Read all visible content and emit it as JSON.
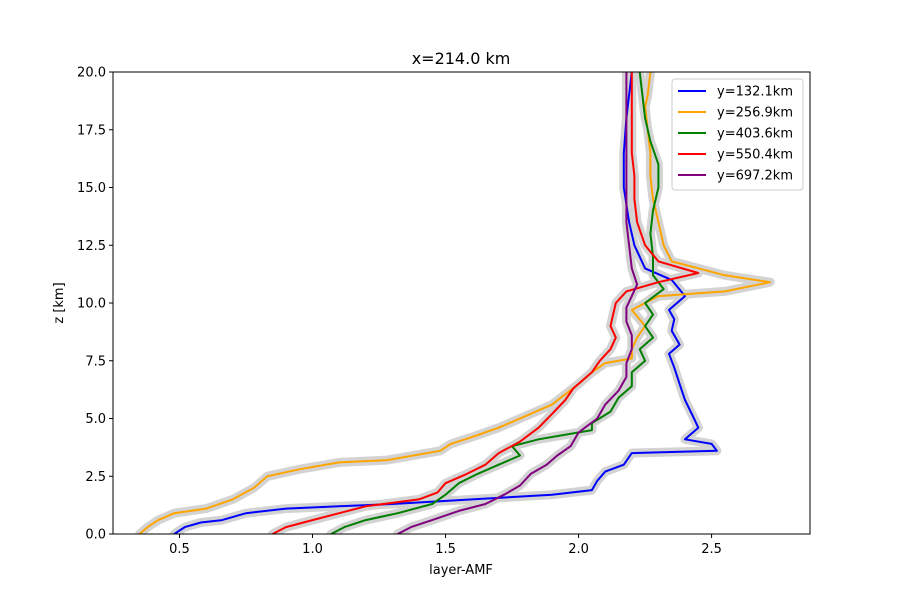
{
  "chart_data": {
    "type": "line",
    "title": "x=214.0 km",
    "xlabel": "layer-AMF",
    "ylabel": "z [km]",
    "xlim": [
      0.25,
      2.87
    ],
    "ylim": [
      0,
      20
    ],
    "xticks": [
      0.5,
      1.0,
      1.5,
      2.0,
      2.5
    ],
    "yticks": [
      0.0,
      2.5,
      5.0,
      7.5,
      10.0,
      12.5,
      15.0,
      17.5,
      20.0
    ],
    "xtick_labels": [
      "0.5",
      "1.0",
      "1.5",
      "2.0",
      "2.5"
    ],
    "ytick_labels": [
      "0.0",
      "2.5",
      "5.0",
      "7.5",
      "10.0",
      "12.5",
      "15.0",
      "17.5",
      "20.0"
    ],
    "grid": false,
    "legend_position": "top-right",
    "uncertainty_band_color": "#d3d3d3",
    "series": [
      {
        "name": "y=132.1km",
        "color": "#0000ff",
        "points": [
          [
            0.48,
            0
          ],
          [
            0.52,
            0.3
          ],
          [
            0.58,
            0.5
          ],
          [
            0.66,
            0.6
          ],
          [
            0.75,
            0.9
          ],
          [
            0.9,
            1.1
          ],
          [
            1.1,
            1.2
          ],
          [
            1.3,
            1.3
          ],
          [
            1.6,
            1.5
          ],
          [
            1.9,
            1.7
          ],
          [
            2.05,
            1.9
          ],
          [
            2.07,
            2.3
          ],
          [
            2.1,
            2.7
          ],
          [
            2.17,
            3.0
          ],
          [
            2.2,
            3.5
          ],
          [
            2.52,
            3.6
          ],
          [
            2.5,
            3.9
          ],
          [
            2.4,
            4.1
          ],
          [
            2.45,
            4.6
          ],
          [
            2.43,
            5.1
          ],
          [
            2.4,
            5.8
          ],
          [
            2.38,
            6.5
          ],
          [
            2.36,
            7.2
          ],
          [
            2.34,
            7.8
          ],
          [
            2.38,
            8.2
          ],
          [
            2.35,
            8.8
          ],
          [
            2.36,
            9.3
          ],
          [
            2.34,
            9.7
          ],
          [
            2.4,
            10.3
          ],
          [
            2.35,
            11.0
          ],
          [
            2.25,
            11.5
          ],
          [
            2.21,
            12.5
          ],
          [
            2.19,
            13.5
          ],
          [
            2.17,
            15.0
          ],
          [
            2.17,
            16.5
          ],
          [
            2.18,
            18.0
          ],
          [
            2.2,
            20.0
          ]
        ]
      },
      {
        "name": "y=256.9km",
        "color": "#ffa500",
        "points": [
          [
            0.35,
            0
          ],
          [
            0.38,
            0.3
          ],
          [
            0.42,
            0.6
          ],
          [
            0.48,
            0.9
          ],
          [
            0.6,
            1.1
          ],
          [
            0.7,
            1.5
          ],
          [
            0.78,
            2.0
          ],
          [
            0.83,
            2.5
          ],
          [
            0.95,
            2.8
          ],
          [
            1.1,
            3.1
          ],
          [
            1.28,
            3.2
          ],
          [
            1.48,
            3.6
          ],
          [
            1.52,
            3.9
          ],
          [
            1.6,
            4.2
          ],
          [
            1.7,
            4.6
          ],
          [
            1.8,
            5.1
          ],
          [
            1.9,
            5.6
          ],
          [
            2.0,
            6.5
          ],
          [
            2.05,
            7.0
          ],
          [
            2.1,
            7.4
          ],
          [
            2.2,
            7.6
          ],
          [
            2.2,
            8.0
          ],
          [
            2.22,
            8.5
          ],
          [
            2.25,
            9.0
          ],
          [
            2.2,
            9.7
          ],
          [
            2.3,
            10.3
          ],
          [
            2.55,
            10.5
          ],
          [
            2.72,
            10.9
          ],
          [
            2.55,
            11.2
          ],
          [
            2.35,
            11.8
          ],
          [
            2.32,
            12.5
          ],
          [
            2.3,
            13.5
          ],
          [
            2.28,
            14.5
          ],
          [
            2.27,
            15.5
          ],
          [
            2.27,
            16.5
          ],
          [
            2.26,
            17.5
          ],
          [
            2.25,
            18.5
          ],
          [
            2.26,
            19.0
          ],
          [
            2.27,
            20.0
          ]
        ]
      },
      {
        "name": "y=403.6km",
        "color": "#008000",
        "points": [
          [
            1.07,
            0
          ],
          [
            1.12,
            0.3
          ],
          [
            1.2,
            0.6
          ],
          [
            1.32,
            0.9
          ],
          [
            1.45,
            1.3
          ],
          [
            1.5,
            1.7
          ],
          [
            1.55,
            2.2
          ],
          [
            1.62,
            2.6
          ],
          [
            1.7,
            3.0
          ],
          [
            1.78,
            3.4
          ],
          [
            1.75,
            3.8
          ],
          [
            1.85,
            4.1
          ],
          [
            2.05,
            4.5
          ],
          [
            2.05,
            4.8
          ],
          [
            2.12,
            5.3
          ],
          [
            2.15,
            5.9
          ],
          [
            2.2,
            6.4
          ],
          [
            2.2,
            7.0
          ],
          [
            2.25,
            7.5
          ],
          [
            2.23,
            8.0
          ],
          [
            2.28,
            8.5
          ],
          [
            2.25,
            9.0
          ],
          [
            2.28,
            9.5
          ],
          [
            2.25,
            10.0
          ],
          [
            2.32,
            10.6
          ],
          [
            2.28,
            11.2
          ],
          [
            2.28,
            12.0
          ],
          [
            2.27,
            13.0
          ],
          [
            2.28,
            14.0
          ],
          [
            2.3,
            15.0
          ],
          [
            2.3,
            16.0
          ],
          [
            2.27,
            17.0
          ],
          [
            2.25,
            18.0
          ],
          [
            2.24,
            19.0
          ],
          [
            2.23,
            20.0
          ]
        ]
      },
      {
        "name": "y=550.4km",
        "color": "#ff0000",
        "points": [
          [
            0.85,
            0
          ],
          [
            0.9,
            0.3
          ],
          [
            1.0,
            0.6
          ],
          [
            1.1,
            0.9
          ],
          [
            1.2,
            1.2
          ],
          [
            1.4,
            1.5
          ],
          [
            1.47,
            1.8
          ],
          [
            1.5,
            2.2
          ],
          [
            1.58,
            2.6
          ],
          [
            1.65,
            3.0
          ],
          [
            1.7,
            3.5
          ],
          [
            1.78,
            4.0
          ],
          [
            1.85,
            4.6
          ],
          [
            1.9,
            5.2
          ],
          [
            1.95,
            5.8
          ],
          [
            1.98,
            6.3
          ],
          [
            2.05,
            7.0
          ],
          [
            2.08,
            7.5
          ],
          [
            2.12,
            8.0
          ],
          [
            2.14,
            8.5
          ],
          [
            2.12,
            9.0
          ],
          [
            2.13,
            9.5
          ],
          [
            2.14,
            10.0
          ],
          [
            2.18,
            10.5
          ],
          [
            2.3,
            10.9
          ],
          [
            2.45,
            11.3
          ],
          [
            2.3,
            11.8
          ],
          [
            2.25,
            12.5
          ],
          [
            2.22,
            13.5
          ],
          [
            2.21,
            14.5
          ],
          [
            2.21,
            15.5
          ],
          [
            2.2,
            16.5
          ],
          [
            2.2,
            17.5
          ],
          [
            2.2,
            18.5
          ],
          [
            2.2,
            20.0
          ]
        ]
      },
      {
        "name": "y=697.2km",
        "color": "#800080",
        "points": [
          [
            1.32,
            0
          ],
          [
            1.37,
            0.3
          ],
          [
            1.45,
            0.6
          ],
          [
            1.55,
            1.0
          ],
          [
            1.65,
            1.3
          ],
          [
            1.72,
            1.7
          ],
          [
            1.78,
            2.1
          ],
          [
            1.82,
            2.6
          ],
          [
            1.88,
            3.0
          ],
          [
            1.92,
            3.4
          ],
          [
            1.97,
            3.8
          ],
          [
            2.0,
            4.4
          ],
          [
            2.07,
            5.0
          ],
          [
            2.1,
            5.6
          ],
          [
            2.15,
            6.2
          ],
          [
            2.18,
            6.8
          ],
          [
            2.18,
            7.4
          ],
          [
            2.2,
            8.0
          ],
          [
            2.2,
            8.6
          ],
          [
            2.18,
            9.2
          ],
          [
            2.18,
            9.8
          ],
          [
            2.2,
            10.3
          ],
          [
            2.22,
            10.8
          ],
          [
            2.2,
            11.5
          ],
          [
            2.19,
            12.5
          ],
          [
            2.18,
            13.5
          ],
          [
            2.18,
            14.5
          ],
          [
            2.18,
            15.5
          ],
          [
            2.18,
            16.5
          ],
          [
            2.18,
            17.5
          ],
          [
            2.18,
            18.5
          ],
          [
            2.18,
            20.0
          ]
        ]
      }
    ]
  }
}
